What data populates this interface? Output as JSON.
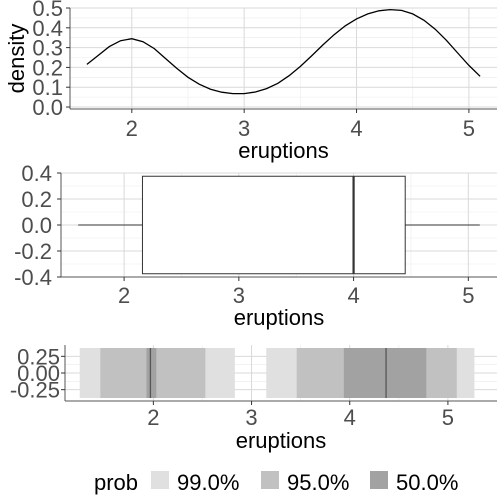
{
  "chart_data": [
    {
      "type": "line",
      "title": "",
      "xlabel": "eruptions",
      "ylabel": "density",
      "xlim": [
        1.45,
        5.25
      ],
      "ylim": [
        -0.01,
        0.5
      ],
      "xticks": [
        2,
        3,
        4,
        5
      ],
      "yticks": [
        0.0,
        0.1,
        0.2,
        0.3,
        0.4,
        0.5
      ],
      "ytick_labels": [
        "0.0",
        "0.1",
        "0.2",
        "0.3",
        "0.4",
        "0.5"
      ],
      "grid": true,
      "series": [
        {
          "x": [
            1.6,
            1.7,
            1.8,
            1.9,
            2.0,
            2.1,
            2.2,
            2.3,
            2.4,
            2.5,
            2.6,
            2.7,
            2.8,
            2.9,
            3.0,
            3.1,
            3.2,
            3.3,
            3.4,
            3.5,
            3.6,
            3.7,
            3.8,
            3.9,
            4.0,
            4.1,
            4.2,
            4.3,
            4.4,
            4.5,
            4.6,
            4.7,
            4.8,
            4.9,
            5.0,
            5.1
          ],
          "y": [
            0.215,
            0.26,
            0.305,
            0.335,
            0.345,
            0.33,
            0.295,
            0.245,
            0.195,
            0.15,
            0.115,
            0.09,
            0.075,
            0.068,
            0.068,
            0.076,
            0.093,
            0.12,
            0.158,
            0.205,
            0.258,
            0.313,
            0.365,
            0.41,
            0.445,
            0.47,
            0.486,
            0.492,
            0.488,
            0.47,
            0.438,
            0.393,
            0.337,
            0.273,
            0.21,
            0.155
          ]
        }
      ]
    },
    {
      "type": "boxplot",
      "title": "",
      "xlabel": "eruptions",
      "ylabel": "",
      "xlim": [
        1.45,
        5.25
      ],
      "ylim": [
        -0.4,
        0.4
      ],
      "xticks": [
        2,
        3,
        4,
        5
      ],
      "yticks": [
        -0.4,
        -0.2,
        0.0,
        0.2,
        0.4
      ],
      "ytick_labels": [
        "-0.4",
        "-0.2",
        "0.0",
        "0.2",
        "0.4"
      ],
      "grid": true,
      "box": {
        "min": 1.6,
        "q1": 2.16,
        "median": 4.0,
        "q3": 4.45,
        "max": 5.1,
        "ymin": -0.375,
        "ymax": 0.375
      }
    },
    {
      "type": "interval",
      "title": "",
      "xlabel": "eruptions",
      "ylabel": "",
      "xlim": [
        1.1,
        5.5
      ],
      "ylim": [
        -0.42,
        0.42
      ],
      "xticks": [
        2,
        3,
        4,
        5
      ],
      "yticks": [
        -0.25,
        0.0,
        0.25
      ],
      "ytick_labels": [
        "-0.25",
        "0.00",
        "0.25"
      ],
      "grid": true,
      "band_ylim": [
        -0.375,
        0.375
      ],
      "intervals": [
        {
          "prob": "99.0%",
          "x0": 1.25,
          "x1": 2.83
        },
        {
          "prob": "95.0%",
          "x0": 1.46,
          "x1": 2.53
        },
        {
          "prob": "50.0%",
          "x0": 1.93,
          "x1": 2.03
        },
        {
          "prob": "99.0%",
          "x0": 3.15,
          "x1": 5.27
        },
        {
          "prob": "95.0%",
          "x0": 3.46,
          "x1": 5.09
        },
        {
          "prob": "50.0%",
          "x0": 3.94,
          "x1": 4.78
        }
      ],
      "modes": [
        1.97,
        4.37
      ]
    }
  ],
  "legend": {
    "title": "prob",
    "placement": "bottom",
    "items": [
      {
        "label": "99.0%",
        "color": "#e0e0e0"
      },
      {
        "label": "95.0%",
        "color": "#c1c1c1"
      },
      {
        "label": "50.0%",
        "color": "#a2a2a2"
      }
    ]
  }
}
